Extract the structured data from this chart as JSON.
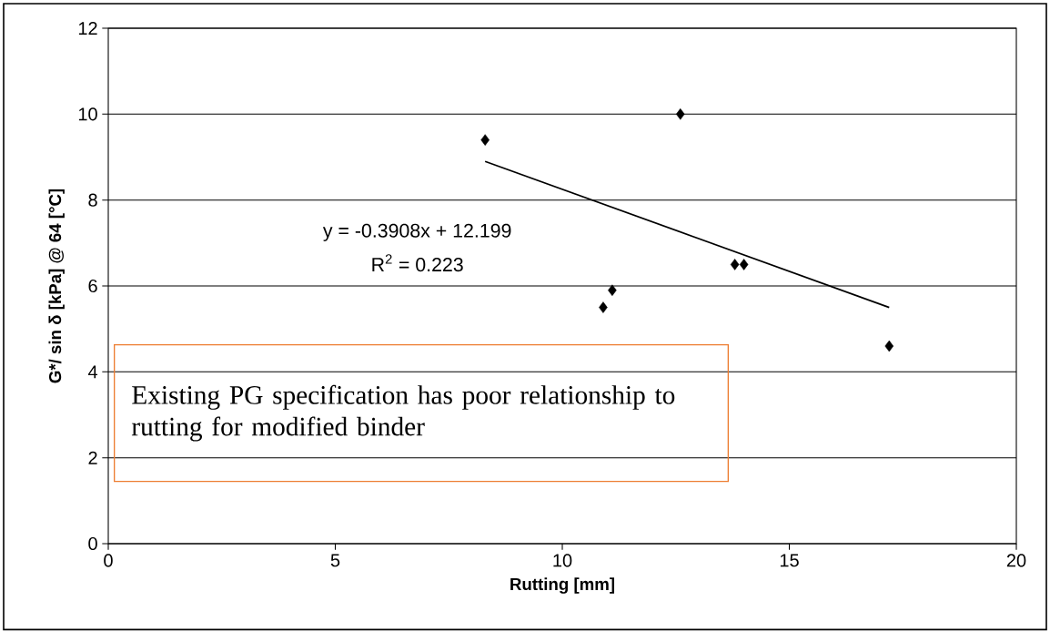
{
  "chart_data": {
    "type": "scatter",
    "xlabel": "Rutting [mm]",
    "ylabel": "G*/ sin δ [kPa] @ 64 [°C]",
    "xlim": [
      0,
      20
    ],
    "xticks": [
      0,
      5,
      10,
      15,
      20
    ],
    "ylim": [
      0,
      12
    ],
    "yticks": [
      0,
      2,
      4,
      6,
      8,
      10,
      12
    ],
    "grid": "y",
    "series": [
      {
        "color": "#000000",
        "marker": "diamond",
        "x": [
          8.3,
          12.6,
          10.9,
          11.1,
          13.8,
          14.0,
          17.2
        ],
        "values": [
          9.4,
          10.0,
          5.5,
          5.9,
          6.5,
          6.5,
          4.6
        ]
      },
      {
        "type": "line",
        "color": "#000000",
        "x": [
          8.3,
          17.2
        ],
        "values": [
          8.9,
          5.5
        ]
      }
    ],
    "annotations": [
      "y = -0.3908x + 12.199",
      "R$^{2}$ = 0.223",
      "Existing PG specification has poor relationship to rutting for modified binder"
    ]
  }
}
